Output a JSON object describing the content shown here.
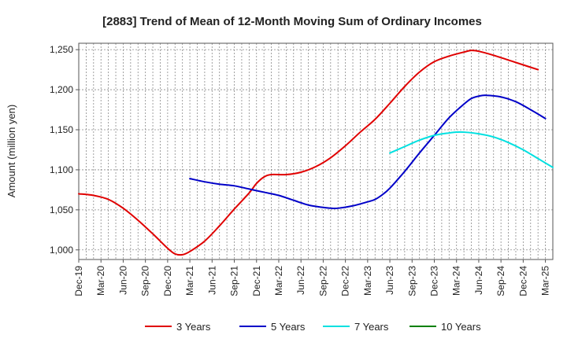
{
  "chart_data": {
    "type": "line",
    "title": "[2883]  Trend of Mean of 12-Month Moving Sum of Ordinary Incomes",
    "xlabel": "",
    "ylabel": "Amount (million yen)",
    "ylim": [
      988,
      1258
    ],
    "yticks": [
      1000,
      1050,
      1100,
      1150,
      1200,
      1250
    ],
    "ytick_labels": [
      "1,000",
      "1,050",
      "1,100",
      "1,150",
      "1,200",
      "1,250"
    ],
    "x_start": "Dec-19",
    "x_end": "Mar-25",
    "x_ticks": [
      0,
      3,
      6,
      9,
      12,
      15,
      18,
      21,
      24,
      27,
      30,
      33,
      36,
      39,
      42,
      45,
      48,
      51,
      54,
      57,
      60,
      63
    ],
    "x_tick_labels": [
      "Dec-19",
      "Mar-20",
      "Jun-20",
      "Sep-20",
      "Dec-20",
      "Mar-21",
      "Jun-21",
      "Sep-21",
      "Dec-21",
      "Mar-22",
      "Jun-22",
      "Sep-22",
      "Dec-22",
      "Mar-23",
      "Jun-23",
      "Sep-23",
      "Dec-23",
      "Mar-24",
      "Jun-24",
      "Sep-24",
      "Dec-24",
      "Mar-25"
    ],
    "grid": true,
    "legend_position": "bottom",
    "series": [
      {
        "name": "3 Years",
        "color": "#e00000",
        "points": [
          [
            0,
            1070
          ],
          [
            2,
            1068
          ],
          [
            4,
            1063
          ],
          [
            6,
            1052
          ],
          [
            8,
            1037
          ],
          [
            10,
            1020
          ],
          [
            12,
            1002
          ],
          [
            13,
            995
          ],
          [
            14,
            994
          ],
          [
            15,
            998
          ],
          [
            17,
            1011
          ],
          [
            19,
            1030
          ],
          [
            21,
            1051
          ],
          [
            23,
            1071
          ],
          [
            24,
            1083
          ],
          [
            25,
            1091
          ],
          [
            26,
            1094
          ],
          [
            28,
            1094
          ],
          [
            30,
            1097
          ],
          [
            32,
            1104
          ],
          [
            34,
            1115
          ],
          [
            36,
            1130
          ],
          [
            38,
            1147
          ],
          [
            40,
            1163
          ],
          [
            42,
            1183
          ],
          [
            44,
            1204
          ],
          [
            46,
            1222
          ],
          [
            48,
            1235
          ],
          [
            50,
            1242
          ],
          [
            52,
            1247
          ],
          [
            53,
            1249
          ],
          [
            54,
            1248
          ],
          [
            56,
            1243
          ],
          [
            58,
            1237
          ],
          [
            60,
            1231
          ],
          [
            62,
            1225
          ]
        ]
      },
      {
        "name": "5 Years",
        "color": "#0000c8",
        "points": [
          [
            15,
            1089
          ],
          [
            17,
            1085
          ],
          [
            19,
            1082
          ],
          [
            21,
            1080
          ],
          [
            23,
            1076
          ],
          [
            25,
            1072
          ],
          [
            27,
            1068
          ],
          [
            29,
            1062
          ],
          [
            31,
            1056
          ],
          [
            33,
            1053
          ],
          [
            34,
            1052
          ],
          [
            35,
            1052
          ],
          [
            37,
            1055
          ],
          [
            39,
            1060
          ],
          [
            40,
            1063
          ],
          [
            41,
            1069
          ],
          [
            42,
            1077
          ],
          [
            44,
            1098
          ],
          [
            46,
            1121
          ],
          [
            48,
            1143
          ],
          [
            50,
            1165
          ],
          [
            52,
            1182
          ],
          [
            53,
            1189
          ],
          [
            54,
            1192
          ],
          [
            55,
            1193
          ],
          [
            57,
            1191
          ],
          [
            59,
            1185
          ],
          [
            61,
            1175
          ],
          [
            63,
            1164
          ]
        ]
      },
      {
        "name": "7 Years",
        "color": "#00e0e0",
        "points": [
          [
            42,
            1121
          ],
          [
            44,
            1129
          ],
          [
            46,
            1137
          ],
          [
            48,
            1143
          ],
          [
            50,
            1146
          ],
          [
            51,
            1147
          ],
          [
            52,
            1147
          ],
          [
            54,
            1145
          ],
          [
            56,
            1141
          ],
          [
            58,
            1134
          ],
          [
            60,
            1125
          ],
          [
            62,
            1114
          ],
          [
            64,
            1103
          ]
        ]
      },
      {
        "name": "10 Years",
        "color": "#008000",
        "points": []
      }
    ]
  }
}
